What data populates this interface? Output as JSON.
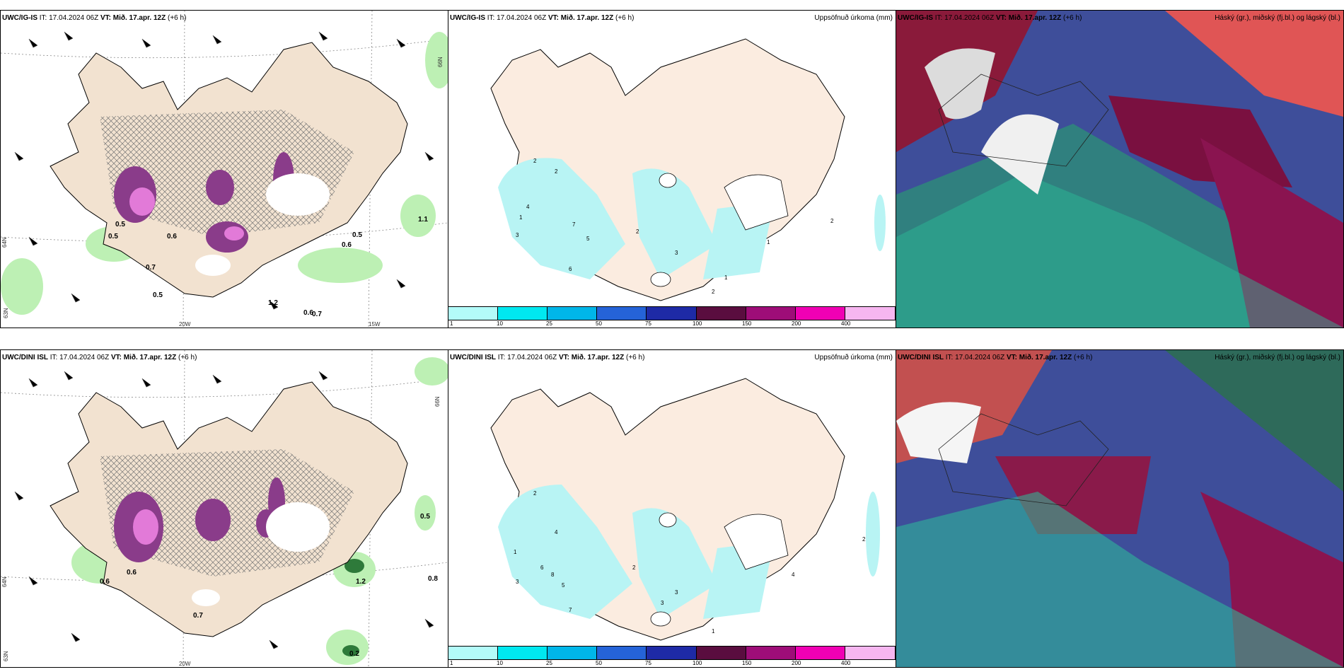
{
  "panels": {
    "top_left": {
      "model": "UWC/IG-IS",
      "it": "IT: 17.04.2024 06Z",
      "vt": "VT: Mið. 17.apr. 12Z",
      "lead": "(+6 h)"
    },
    "top_mid": {
      "model": "UWC/IG-IS",
      "it": "IT: 17.04.2024 06Z",
      "vt": "VT: Mið. 17.apr. 12Z",
      "lead": "(+6 h)",
      "right": "Uppsöfnuð úrkoma (mm)"
    },
    "top_right": {
      "model": "UWC/IG-IS",
      "it": "IT: 17.04.2024 06Z",
      "vt": "VT: Mið. 17.apr. 12Z",
      "lead": "(+6 h)",
      "right": "Háský (gr.), miðský (fj.bl.) og lágský (bl.)"
    },
    "bot_left": {
      "model": "UWC/DINI ISL",
      "it": "IT: 17.04.2024 06Z",
      "vt": "VT: Mið. 17.apr. 12Z",
      "lead": "(+6 h)"
    },
    "bot_mid": {
      "model": "UWC/DINI ISL",
      "it": "IT: 17.04.2024 06Z",
      "vt": "VT: Mið. 17.apr. 12Z",
      "lead": "(+6 h)",
      "right": "Uppsöfnuð úrkoma (mm)"
    },
    "bot_right": {
      "model": "UWC/DINI ISL",
      "it": "IT: 17.04.2024 06Z",
      "vt": "VT: Mið. 17.apr. 12Z",
      "lead": "(+6 h)",
      "right": "Háský (gr.), miðský (fj.bl.) og lágský (bl.)"
    }
  },
  "axes": {
    "lon_20w": "20W",
    "lon_15w": "15W",
    "lat_66n": "66N",
    "lat_64n": "64N",
    "lat_63n": "63N"
  },
  "precip_labels_top": [
    "0.5",
    "0.6",
    "0.7",
    "0.5",
    "1.1",
    "1.2",
    "0.6",
    "0.7",
    "0.5",
    "0.6",
    "0.5"
  ],
  "precip_labels_bot": [
    "0.6",
    "0.5",
    "0.8",
    "0.2",
    "0.6",
    "1.2",
    "0.7"
  ],
  "colorbar": {
    "colors": [
      "#b3fbf9",
      "#00e8f0",
      "#00b6e9",
      "#2563d8",
      "#1e2aa6",
      "#5a0d3f",
      "#9e0d78",
      "#f000b4",
      "#f6b6f0"
    ],
    "ticks": [
      "1",
      "10",
      "25",
      "50",
      "75",
      "100",
      "150",
      "200",
      "400"
    ]
  },
  "accum_labels_top": [
    "1",
    "2",
    "3",
    "4",
    "2",
    "5",
    "6",
    "7",
    "2",
    "3",
    "1",
    "2",
    "2",
    "1"
  ],
  "accum_labels_bot": [
    "1",
    "2",
    "3",
    "4",
    "5",
    "6",
    "7",
    "8",
    "3",
    "2",
    "1",
    "2",
    "4",
    "3"
  ]
}
